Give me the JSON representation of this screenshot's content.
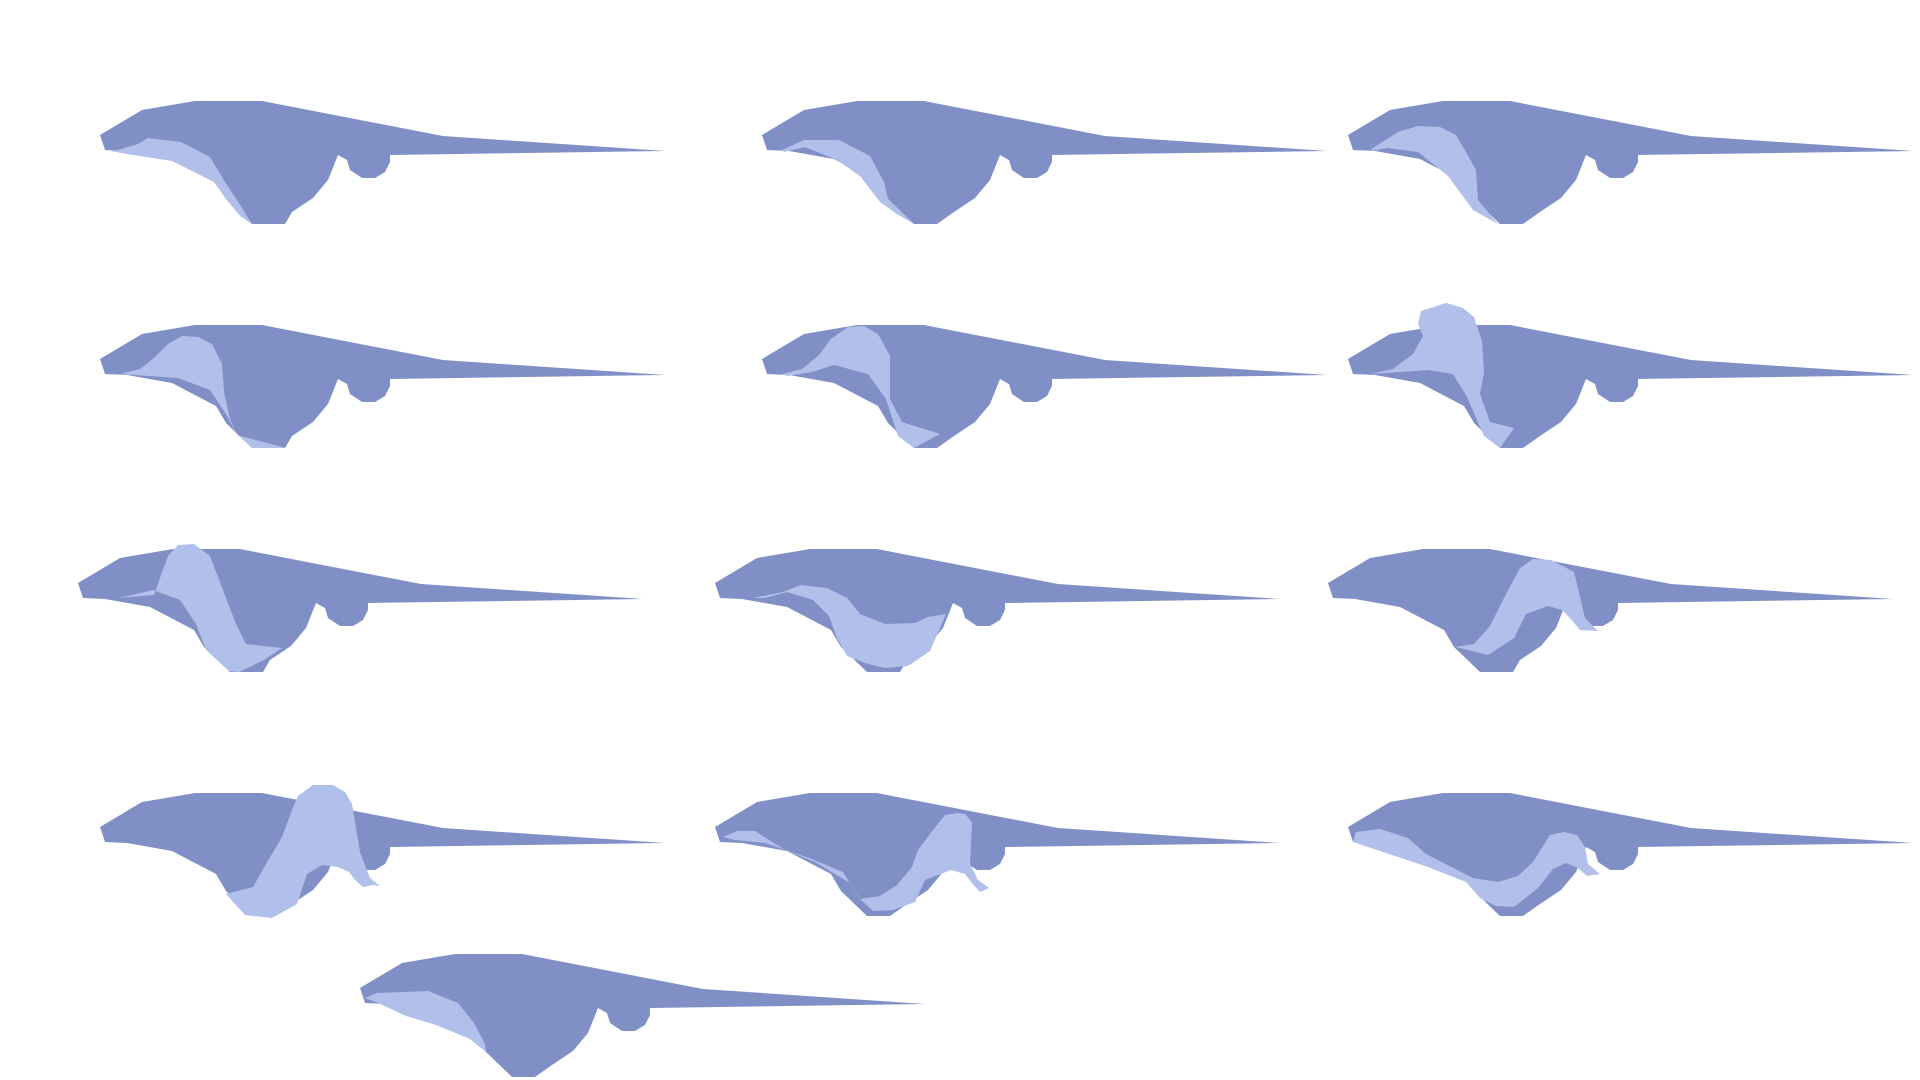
{
  "colors": {
    "background": "#ffffff",
    "base_shape": "#8090c6",
    "overlay_shape": "#b1bfeb"
  },
  "diagram": {
    "panel_count": 13,
    "panels": [
      {
        "row": 1,
        "col": 1
      },
      {
        "row": 1,
        "col": 2
      },
      {
        "row": 1,
        "col": 3
      },
      {
        "row": 2,
        "col": 1
      },
      {
        "row": 2,
        "col": 2
      },
      {
        "row": 2,
        "col": 3
      },
      {
        "row": 3,
        "col": 1
      },
      {
        "row": 3,
        "col": 2
      },
      {
        "row": 3,
        "col": 3
      },
      {
        "row": 4,
        "col": 1
      },
      {
        "row": 4,
        "col": 2
      },
      {
        "row": 4,
        "col": 3
      },
      {
        "row": 5,
        "col": 1
      }
    ]
  }
}
